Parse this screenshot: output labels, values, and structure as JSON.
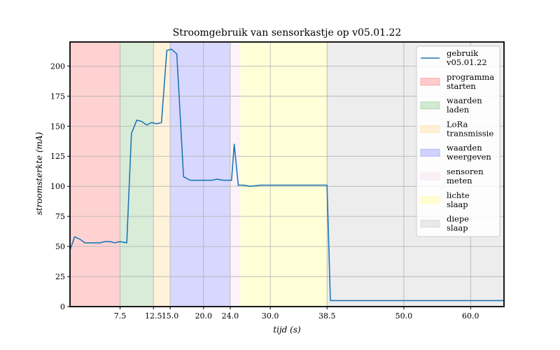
{
  "chart_data": {
    "type": "line",
    "title": "Stroomgebruik van sensorkastje op v05.01.22",
    "xlabel": "tijd (s)",
    "ylabel": "stroomsterkte (mA)",
    "xlim": [
      0,
      65
    ],
    "ylim": [
      0,
      220
    ],
    "x_ticks": [
      7.5,
      12.5,
      15.0,
      20.0,
      24.0,
      30.0,
      38.5,
      50.0,
      60.0
    ],
    "x_tick_labels": [
      "7.5",
      "12.5",
      "15.0",
      "20.0",
      "24.0",
      "30.0",
      "38.5",
      "50.0",
      "60.0"
    ],
    "y_ticks": [
      0,
      25,
      50,
      75,
      100,
      125,
      150,
      175,
      200
    ],
    "y_tick_labels": [
      "0",
      "25",
      "50",
      "75",
      "100",
      "125",
      "150",
      "175",
      "200"
    ],
    "grid": true,
    "legend_position": "top-right",
    "series": [
      {
        "name": "gebruik v05.01.22",
        "color": "#1f77b4",
        "x": [
          0,
          0.7,
          1.5,
          2.2,
          3.0,
          3.7,
          4.5,
          5.2,
          6.0,
          6.7,
          7.5,
          8.5,
          9.2,
          10.0,
          10.7,
          11.5,
          12.2,
          13.0,
          13.7,
          14.5,
          15.2,
          16.0,
          17.0,
          18.0,
          18.7,
          19.5,
          20.2,
          21.2,
          22.0,
          23.0,
          24.0,
          24.2,
          24.6,
          25.2,
          26.0,
          27.0,
          28.5,
          30.0,
          31.5,
          33.0,
          34.5,
          36.0,
          37.5,
          38.2,
          38.5,
          39.0,
          45.0,
          50.0,
          55.0,
          60.0,
          65.0
        ],
        "y": [
          47,
          58,
          56,
          53,
          53,
          53,
          53,
          54,
          54,
          53,
          54,
          53,
          144,
          155,
          154,
          151,
          153,
          152,
          153,
          213,
          214,
          210,
          108,
          105,
          105,
          105,
          105,
          105,
          106,
          105,
          105,
          105,
          135,
          101,
          101,
          100,
          101,
          101,
          101,
          101,
          101,
          101,
          101,
          101,
          101,
          5,
          5,
          5,
          5,
          5,
          5
        ]
      }
    ],
    "regions": [
      {
        "label": "programma starten",
        "label_lines": [
          "programma",
          "starten"
        ],
        "x0": 0,
        "x1": 7.5,
        "color": "#ff9b9b"
      },
      {
        "label": "waarden laden",
        "label_lines": [
          "waarden",
          "laden"
        ],
        "x0": 7.5,
        "x1": 12.5,
        "color": "#a8d5a8"
      },
      {
        "label": "LoRa transmissie",
        "label_lines": [
          "LoRa",
          "transmissie"
        ],
        "x0": 12.5,
        "x1": 15.0,
        "color": "#ffe3b0"
      },
      {
        "label": "waarden weergeven",
        "label_lines": [
          "waarden",
          "weergeven"
        ],
        "x0": 15.0,
        "x1": 24.0,
        "color": "#a8a8ff"
      },
      {
        "label": "sensoren meten",
        "label_lines": [
          "sensoren",
          "meten"
        ],
        "x0": 24.0,
        "x1": 25.5,
        "color": "#f8e4f3"
      },
      {
        "label": "lichte slaap",
        "label_lines": [
          "lichte",
          "slaap"
        ],
        "x0": 25.5,
        "x1": 38.5,
        "color": "#ffffa8"
      },
      {
        "label": "diepe slaap",
        "label_lines": [
          "diepe",
          "slaap"
        ],
        "x0": 38.5,
        "x1": 65,
        "color": "#d6d6d6"
      }
    ],
    "legend_series_lines": [
      "gebruik",
      "v05.01.22"
    ]
  }
}
